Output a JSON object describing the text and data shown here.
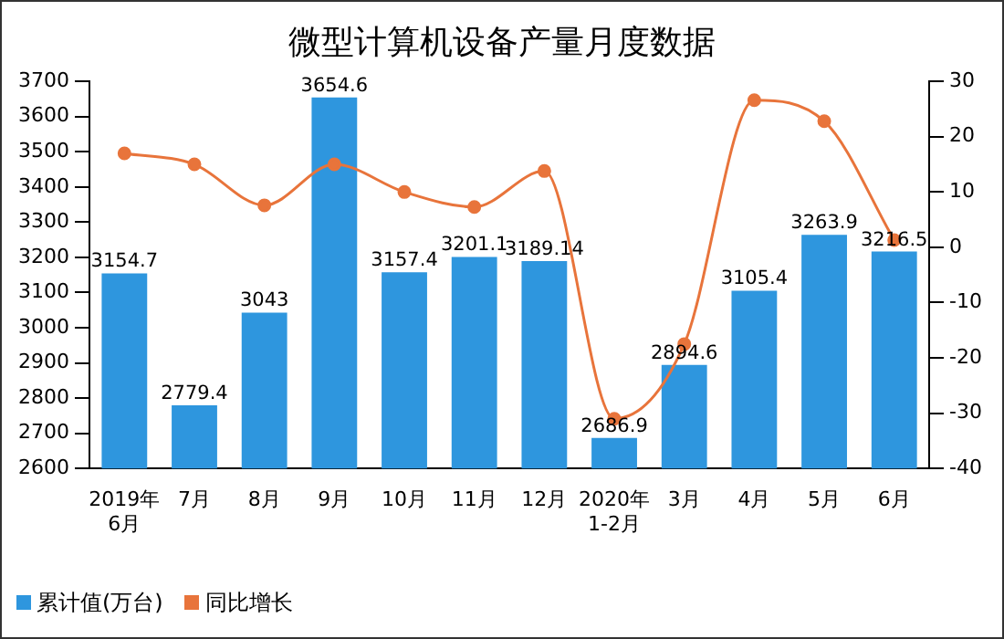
{
  "chart_data": {
    "type": "bar",
    "title": "微型计算机设备产量月度数据",
    "categories": [
      "2019年\n6月",
      "7月",
      "8月",
      "9月",
      "10月",
      "11月",
      "12月",
      "2020年\n1-2月",
      "3月",
      "4月",
      "5月",
      "6月"
    ],
    "series": [
      {
        "name": "累计值(万台)",
        "color": "#2e96de",
        "values": [
          3154.7,
          2779.4,
          3043,
          3654.6,
          3157.4,
          3201.1,
          3189.14,
          2686.9,
          2894.6,
          3105.4,
          3263.9,
          3216.5
        ],
        "value_labels": [
          "3154.7",
          "2779.4",
          "3043",
          "3654.6",
          "3157.4",
          "3201.1",
          "3189.14",
          "2686.9",
          "2894.6",
          "3105.4",
          "3263.9",
          "3216.5"
        ]
      },
      {
        "name": "同比增长",
        "type": "line",
        "axis": "y2",
        "color": "#e8743b",
        "values": [
          17,
          15,
          7.6,
          15,
          10,
          7.3,
          13.8,
          -31,
          -17.5,
          26.6,
          22.8,
          1.3
        ]
      }
    ],
    "ylim": [
      2600,
      3700
    ],
    "yticks": [
      2600,
      2700,
      2800,
      2900,
      3000,
      3100,
      3200,
      3300,
      3400,
      3500,
      3600,
      3700
    ],
    "y2lim": [
      -40,
      30
    ],
    "y2ticks": [
      -40,
      -30,
      -20,
      -10,
      0,
      10,
      20,
      30
    ],
    "grid": false,
    "legend": "bottom left",
    "marker": "circle",
    "line_style": "solid"
  }
}
